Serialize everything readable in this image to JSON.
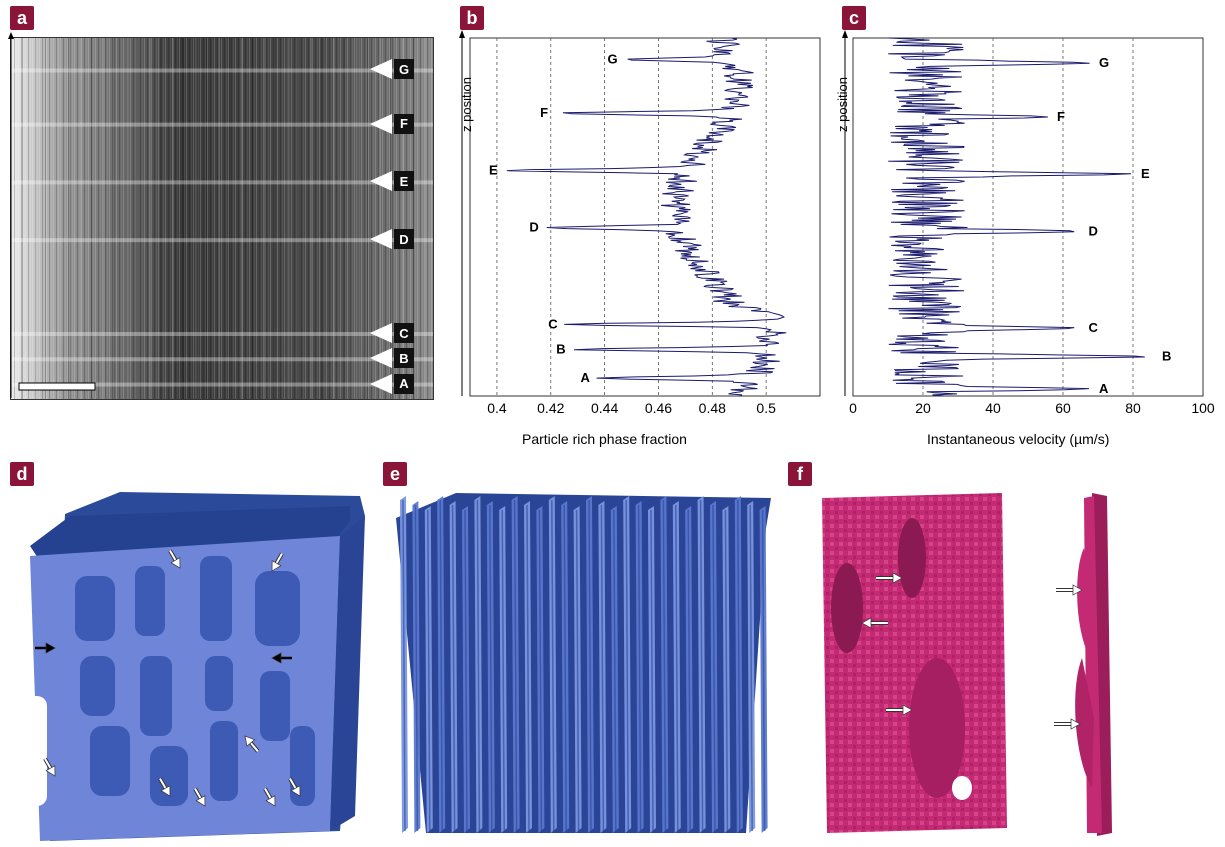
{
  "panels": {
    "a": "a",
    "b": "b",
    "c": "c",
    "d": "d",
    "e": "e",
    "f": "f"
  },
  "panel_a": {
    "markers": [
      "G",
      "F",
      "E",
      "D",
      "C",
      "B",
      "A"
    ],
    "marker_z": [
      0.91,
      0.76,
      0.6,
      0.44,
      0.18,
      0.11,
      0.04
    ]
  },
  "chart_data": [
    {
      "type": "line",
      "panel": "b",
      "xlabel": "Particle rich phase fraction",
      "ylabel": "z position",
      "xlim": [
        0.39,
        0.52
      ],
      "ylim": [
        0,
        1
      ],
      "x_ticks": [
        "0.4",
        "0.42",
        "0.44",
        "0.46",
        "0.48",
        "0.5"
      ],
      "x_tick_values": [
        0.4,
        0.42,
        0.44,
        0.46,
        0.48,
        0.5
      ],
      "grid": "vertical dashed",
      "peaks": [
        {
          "label": "G",
          "x": 0.447,
          "z": 0.94
        },
        {
          "label": "F",
          "x": 0.422,
          "z": 0.79
        },
        {
          "label": "E",
          "x": 0.403,
          "z": 0.63
        },
        {
          "label": "D",
          "x": 0.418,
          "z": 0.47
        },
        {
          "label": "C",
          "x": 0.425,
          "z": 0.2
        },
        {
          "label": "B",
          "x": 0.428,
          "z": 0.13
        },
        {
          "label": "A",
          "x": 0.437,
          "z": 0.05
        }
      ]
    },
    {
      "type": "line",
      "panel": "c",
      "xlabel": "Instantaneous velocity (µm/s)",
      "ylabel": "z position",
      "xlim": [
        0,
        100
      ],
      "ylim": [
        0,
        1
      ],
      "x_ticks": [
        "0",
        "20",
        "40",
        "60",
        "80",
        "100"
      ],
      "x_tick_values": [
        0,
        20,
        40,
        60,
        80,
        100
      ],
      "grid": "vertical dashed",
      "peaks": [
        {
          "label": "G",
          "x": 68,
          "z": 0.93
        },
        {
          "label": "F",
          "x": 56,
          "z": 0.78
        },
        {
          "label": "E",
          "x": 80,
          "z": 0.62
        },
        {
          "label": "D",
          "x": 65,
          "z": 0.46
        },
        {
          "label": "C",
          "x": 65,
          "z": 0.19
        },
        {
          "label": "B",
          "x": 86,
          "z": 0.11
        },
        {
          "label": "A",
          "x": 68,
          "z": 0.02
        }
      ]
    }
  ],
  "colors": {
    "panel_letter_bg": "#8a1538",
    "trace": "#1a1a6e",
    "blue_render": "#6f86d8",
    "dark_blue": "#24428f",
    "magenta": "#c42a74"
  }
}
